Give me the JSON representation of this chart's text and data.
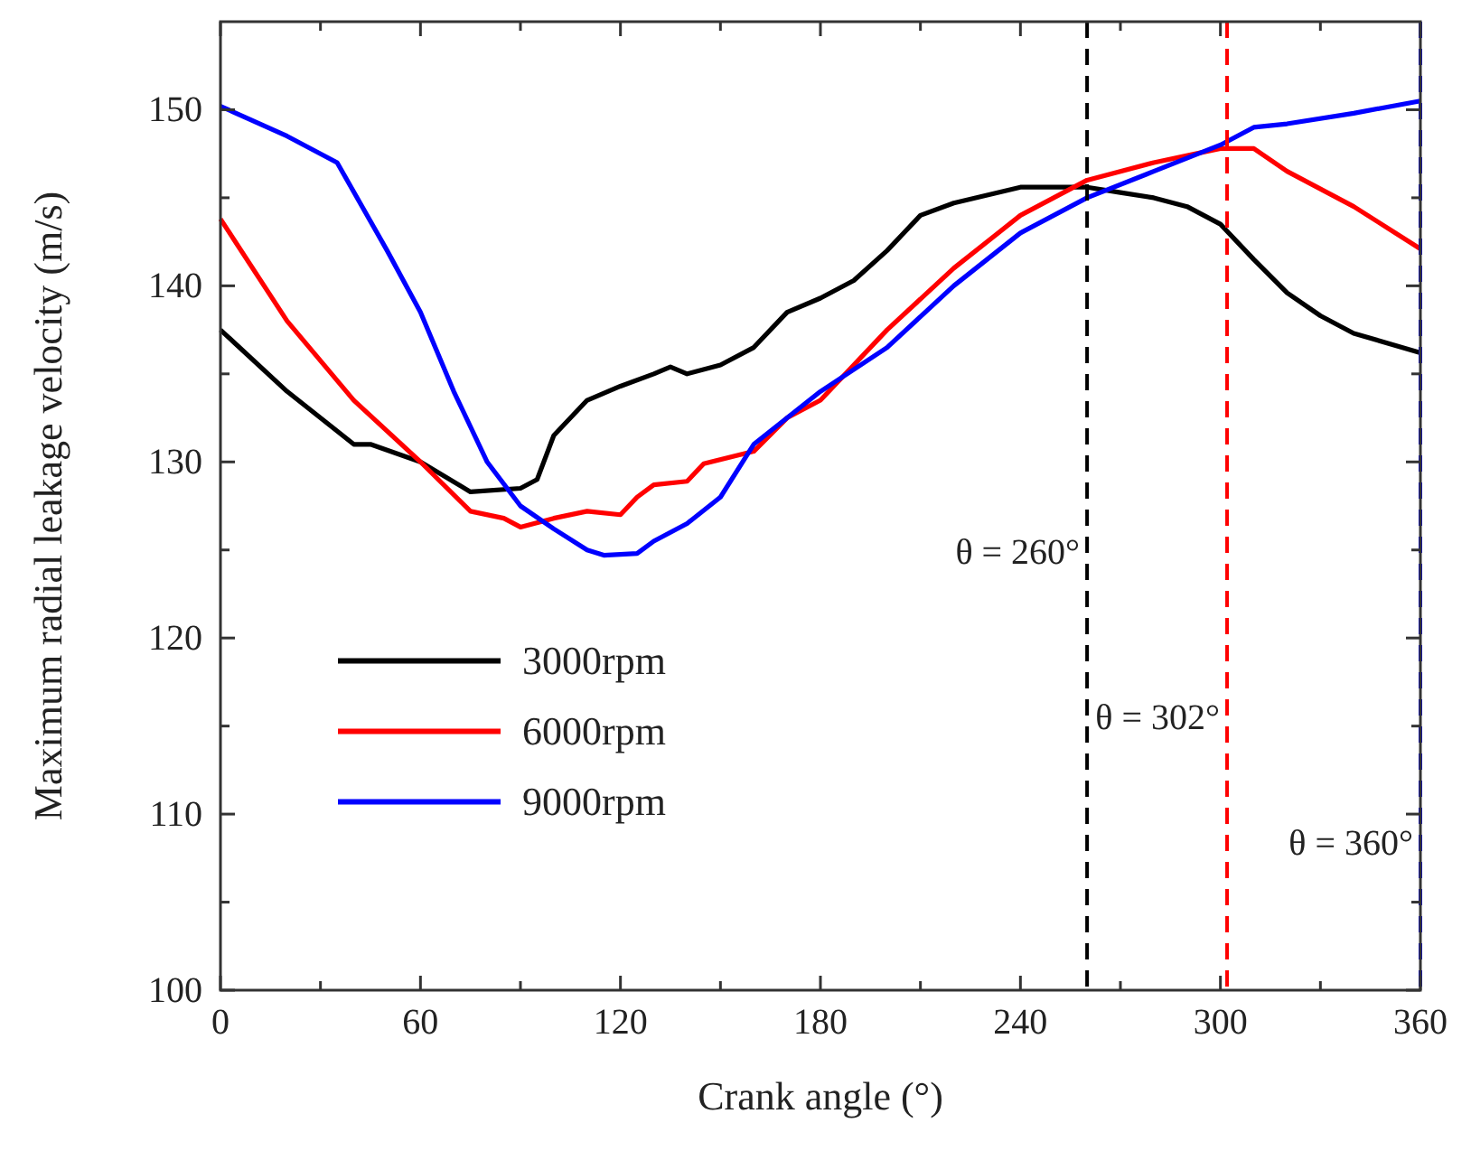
{
  "chart_data": {
    "type": "line",
    "xlabel": "Crank angle (°)",
    "ylabel": "Maximum radial leakage velocity (m/s)",
    "xlim": [
      0,
      360
    ],
    "ylim": [
      100,
      155
    ],
    "xticks": [
      0,
      {
        "value": 30,
        "label": null
      },
      60,
      {
        "value": 90,
        "label": null
      },
      120,
      {
        "value": 150,
        "label": null
      },
      180,
      {
        "value": 210,
        "label": null
      },
      240,
      {
        "value": 270,
        "label": null
      },
      300,
      {
        "value": 330,
        "label": null
      },
      360
    ],
    "yticks": [
      100,
      {
        "value": 105,
        "label": null
      },
      110,
      {
        "value": 115,
        "label": null
      },
      120,
      {
        "value": 125,
        "label": null
      },
      130,
      {
        "value": 135,
        "label": null
      },
      140,
      {
        "value": 145,
        "label": null
      },
      150
    ],
    "grid": false,
    "legend": "center left",
    "line_style": "solid",
    "marker": "none",
    "series": [
      {
        "name": "3000rpm",
        "color": "#000000",
        "x": [
          0,
          20,
          40,
          45,
          60,
          75,
          90,
          95,
          100,
          110,
          120,
          130,
          135,
          140,
          150,
          160,
          170,
          180,
          190,
          200,
          210,
          220,
          240,
          260,
          270,
          280,
          290,
          300,
          310,
          320,
          330,
          340,
          360
        ],
        "values": [
          137.5,
          134,
          131,
          131,
          130,
          128.3,
          128.5,
          129,
          131.5,
          133.5,
          134.3,
          135,
          135.4,
          135,
          135.5,
          136.5,
          138.5,
          139.3,
          140.3,
          142,
          144,
          144.7,
          145.6,
          145.6,
          145.3,
          145,
          144.5,
          143.5,
          141.5,
          139.6,
          138.3,
          137.3,
          136.2
        ]
      },
      {
        "name": "6000rpm",
        "color": "#ff0000",
        "x": [
          0,
          20,
          40,
          60,
          75,
          85,
          90,
          100,
          110,
          120,
          125,
          130,
          140,
          145,
          160,
          170,
          180,
          200,
          220,
          240,
          260,
          280,
          300,
          310,
          320,
          340,
          360
        ],
        "values": [
          143.8,
          138,
          133.5,
          130,
          127.2,
          126.8,
          126.3,
          126.8,
          127.2,
          127,
          128,
          128.7,
          128.9,
          129.9,
          130.6,
          132.5,
          133.5,
          137.5,
          141,
          144,
          146,
          147,
          147.8,
          147.8,
          146.5,
          144.5,
          142.1
        ]
      },
      {
        "name": "9000rpm",
        "color": "#0000ff",
        "x": [
          0,
          20,
          35,
          50,
          60,
          70,
          80,
          90,
          100,
          110,
          115,
          125,
          130,
          140,
          150,
          160,
          180,
          200,
          220,
          240,
          260,
          280,
          300,
          310,
          320,
          340,
          360
        ],
        "values": [
          150.2,
          148.5,
          147,
          142,
          138.5,
          134,
          130,
          127.5,
          126.2,
          125,
          124.7,
          124.8,
          125.5,
          126.5,
          128,
          131,
          134,
          136.5,
          140,
          143,
          145,
          146.5,
          148,
          149,
          149.2,
          149.8,
          150.5
        ]
      }
    ],
    "ref_lines": [
      {
        "axis": "x",
        "value": 260,
        "label": "θ = 260°",
        "color": "#000000",
        "line_style": "dashed"
      },
      {
        "axis": "x",
        "value": 302,
        "label": "θ = 302°",
        "color": "#ff0000",
        "line_style": "dashed"
      },
      {
        "axis": "x",
        "value": 360,
        "label": "θ = 360°",
        "color": "#0000ff",
        "line_style": "dashed"
      }
    ]
  }
}
